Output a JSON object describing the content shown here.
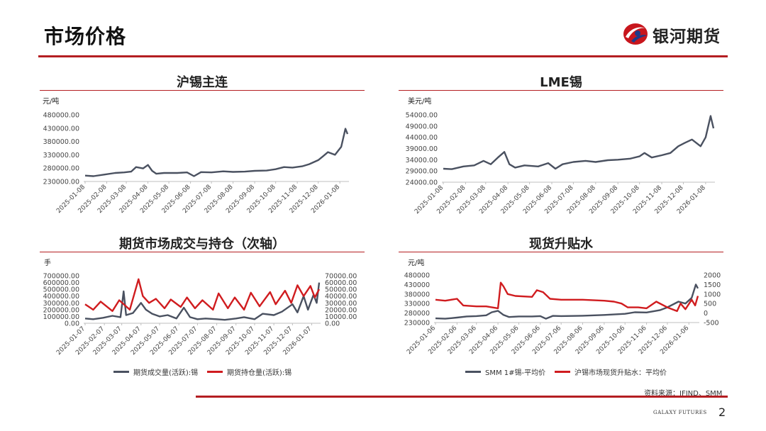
{
  "header": {
    "title": "市场价格",
    "logo_text": "银河期货"
  },
  "footer": {
    "source": "资料来源：IFIND、SMM",
    "brand": "GALAXY FUTURES",
    "page_number": "2"
  },
  "colors": {
    "accent": "#b41e22",
    "series_gray": "#4a5160",
    "series_red": "#d01c1f"
  },
  "chart_data": [
    {
      "id": "shfe",
      "type": "line",
      "title": "沪锡主连",
      "unit": "元/吨",
      "ylim": [
        230000,
        480000
      ],
      "yticks": [
        "480000.00",
        "430000.00",
        "380000.00",
        "330000.00",
        "280000.00",
        "230000.00"
      ],
      "xticks": [
        "2025-01-08",
        "2025-02-08",
        "2025-03-08",
        "2025-04-08",
        "2025-05-08",
        "2025-06-08",
        "2025-07-08",
        "2025-08-08",
        "2025-09-08",
        "2025-10-08",
        "2025-11-08",
        "2025-12-08",
        "2026-01-08"
      ],
      "series": [
        {
          "color": "#4a5160",
          "points": [
            [
              "2025-01-08",
              252000
            ],
            [
              "2025-01-20",
              250000
            ],
            [
              "2025-02-05",
              256000
            ],
            [
              "2025-02-20",
              262000
            ],
            [
              "2025-03-05",
              264000
            ],
            [
              "2025-03-15",
              267000
            ],
            [
              "2025-03-22",
              284000
            ],
            [
              "2025-04-01",
              279000
            ],
            [
              "2025-04-08",
              292000
            ],
            [
              "2025-04-14",
              270000
            ],
            [
              "2025-04-20",
              259000
            ],
            [
              "2025-05-01",
              262000
            ],
            [
              "2025-05-20",
              262000
            ],
            [
              "2025-06-03",
              264000
            ],
            [
              "2025-06-13",
              250000
            ],
            [
              "2025-06-23",
              265000
            ],
            [
              "2025-07-08",
              264000
            ],
            [
              "2025-07-25",
              268000
            ],
            [
              "2025-08-08",
              266000
            ],
            [
              "2025-08-25",
              267000
            ],
            [
              "2025-09-08",
              270000
            ],
            [
              "2025-09-25",
              271000
            ],
            [
              "2025-10-08",
              276000
            ],
            [
              "2025-10-20",
              284000
            ],
            [
              "2025-11-01",
              282000
            ],
            [
              "2025-11-15",
              287000
            ],
            [
              "2025-11-25",
              295000
            ],
            [
              "2025-12-08",
              310000
            ],
            [
              "2025-12-15",
              325000
            ],
            [
              "2025-12-22",
              340000
            ],
            [
              "2026-01-01",
              330000
            ],
            [
              "2026-01-10",
              360000
            ],
            [
              "2026-01-16",
              428000
            ],
            [
              "2026-01-19",
              408000
            ]
          ]
        }
      ]
    },
    {
      "id": "lme",
      "type": "line",
      "title": "LME锡",
      "unit": "美元/吨",
      "ylim": [
        24000,
        54000
      ],
      "yticks": [
        "54000.00",
        "49000.00",
        "44000.00",
        "39000.00",
        "34000.00",
        "29000.00",
        "24000.00"
      ],
      "xticks": [
        "2025-01-08",
        "2025-02-08",
        "2025-03-08",
        "2025-04-08",
        "2025-05-08",
        "2025-06-08",
        "2025-07-08",
        "2025-08-08",
        "2025-09-08",
        "2025-10-08",
        "2025-11-08",
        "2025-12-08",
        "2026-01-08"
      ],
      "series": [
        {
          "color": "#4a5160",
          "points": [
            [
              "2025-01-08",
              30000
            ],
            [
              "2025-01-20",
              29800
            ],
            [
              "2025-02-05",
              31000
            ],
            [
              "2025-02-20",
              31500
            ],
            [
              "2025-03-05",
              33500
            ],
            [
              "2025-03-15",
              32000
            ],
            [
              "2025-03-25",
              35000
            ],
            [
              "2025-04-03",
              37500
            ],
            [
              "2025-04-10",
              32000
            ],
            [
              "2025-04-18",
              30500
            ],
            [
              "2025-05-01",
              31500
            ],
            [
              "2025-05-20",
              31000
            ],
            [
              "2025-06-03",
              32500
            ],
            [
              "2025-06-13",
              30000
            ],
            [
              "2025-06-23",
              32000
            ],
            [
              "2025-07-08",
              33000
            ],
            [
              "2025-07-25",
              33500
            ],
            [
              "2025-08-08",
              33000
            ],
            [
              "2025-08-25",
              33800
            ],
            [
              "2025-09-08",
              34000
            ],
            [
              "2025-09-25",
              34500
            ],
            [
              "2025-10-08",
              35500
            ],
            [
              "2025-10-15",
              37000
            ],
            [
              "2025-10-25",
              35000
            ],
            [
              "2025-11-08",
              36000
            ],
            [
              "2025-11-20",
              37000
            ],
            [
              "2025-12-01",
              40000
            ],
            [
              "2025-12-10",
              41500
            ],
            [
              "2025-12-20",
              43000
            ],
            [
              "2026-01-01",
              40000
            ],
            [
              "2026-01-08",
              44000
            ],
            [
              "2026-01-15",
              53500
            ],
            [
              "2026-01-19",
              48000
            ]
          ]
        }
      ]
    },
    {
      "id": "volume_oi",
      "type": "line",
      "title": "期货市场成交与持仓（次轴）",
      "unit": "手",
      "ylim": [
        0,
        700000
      ],
      "ylim_right": [
        0,
        70000
      ],
      "yticks": [
        "700000.00",
        "600000.00",
        "500000.00",
        "400000.00",
        "300000.00",
        "200000.00",
        "100000.00",
        "0.00"
      ],
      "yticks_right": [
        "70000.00",
        "60000.00",
        "50000.00",
        "40000.00",
        "30000.00",
        "20000.00",
        "10000.00",
        "0.00"
      ],
      "xticks": [
        "2025-01-07",
        "2025-02-07",
        "2025-03-07",
        "2025-04-07",
        "2025-05-07",
        "2025-06-07",
        "2025-07-07",
        "2025-08-07",
        "2025-09-07",
        "2025-10-07",
        "2025-11-07",
        "2025-12-07",
        "2026-01-07"
      ],
      "series": [
        {
          "name": "期货成交量(活跃):锡",
          "color": "#4a5160",
          "axis": "left",
          "points": [
            [
              "2025-01-07",
              70000
            ],
            [
              "2025-01-20",
              60000
            ],
            [
              "2025-02-05",
              80000
            ],
            [
              "2025-02-20",
              110000
            ],
            [
              "2025-03-05",
              90000
            ],
            [
              "2025-03-10",
              470000
            ],
            [
              "2025-03-14",
              120000
            ],
            [
              "2025-03-25",
              150000
            ],
            [
              "2025-04-07",
              300000
            ],
            [
              "2025-04-15",
              200000
            ],
            [
              "2025-04-25",
              140000
            ],
            [
              "2025-05-07",
              100000
            ],
            [
              "2025-05-20",
              120000
            ],
            [
              "2025-06-03",
              70000
            ],
            [
              "2025-06-15",
              230000
            ],
            [
              "2025-06-25",
              90000
            ],
            [
              "2025-07-07",
              60000
            ],
            [
              "2025-07-20",
              70000
            ],
            [
              "2025-08-07",
              60000
            ],
            [
              "2025-08-20",
              50000
            ],
            [
              "2025-09-07",
              70000
            ],
            [
              "2025-09-20",
              90000
            ],
            [
              "2025-10-07",
              60000
            ],
            [
              "2025-10-20",
              140000
            ],
            [
              "2025-11-07",
              120000
            ],
            [
              "2025-11-20",
              170000
            ],
            [
              "2025-12-07",
              280000
            ],
            [
              "2025-12-15",
              160000
            ],
            [
              "2025-12-25",
              400000
            ],
            [
              "2026-01-01",
              200000
            ],
            [
              "2026-01-10",
              420000
            ],
            [
              "2026-01-15",
              300000
            ],
            [
              "2026-01-19",
              600000
            ]
          ]
        },
        {
          "name": "期货持仓量(活跃):锡",
          "color": "#d01c1f",
          "axis": "right",
          "points": [
            [
              "2025-01-07",
              28000
            ],
            [
              "2025-01-20",
              20000
            ],
            [
              "2025-02-01",
              32000
            ],
            [
              "2025-02-20",
              18000
            ],
            [
              "2025-03-03",
              34000
            ],
            [
              "2025-03-20",
              20000
            ],
            [
              "2025-04-03",
              65000
            ],
            [
              "2025-04-10",
              40000
            ],
            [
              "2025-04-20",
              30000
            ],
            [
              "2025-05-01",
              36000
            ],
            [
              "2025-05-15",
              22000
            ],
            [
              "2025-05-25",
              35000
            ],
            [
              "2025-06-10",
              24000
            ],
            [
              "2025-06-20",
              38000
            ],
            [
              "2025-07-03",
              22000
            ],
            [
              "2025-07-15",
              34000
            ],
            [
              "2025-08-01",
              20000
            ],
            [
              "2025-08-10",
              44000
            ],
            [
              "2025-08-25",
              22000
            ],
            [
              "2025-09-05",
              38000
            ],
            [
              "2025-09-20",
              20000
            ],
            [
              "2025-10-01",
              45000
            ],
            [
              "2025-10-15",
              25000
            ],
            [
              "2025-11-01",
              46000
            ],
            [
              "2025-11-10",
              28000
            ],
            [
              "2025-11-25",
              48000
            ],
            [
              "2025-12-05",
              30000
            ],
            [
              "2025-12-15",
              56000
            ],
            [
              "2025-12-25",
              40000
            ],
            [
              "2026-01-05",
              55000
            ],
            [
              "2026-01-12",
              38000
            ],
            [
              "2026-01-19",
              50000
            ]
          ]
        }
      ]
    },
    {
      "id": "spot_premium",
      "type": "line",
      "title": "现货升贴水",
      "unit": "元/吨",
      "ylim": [
        230000,
        480000
      ],
      "ylim_right": [
        -500,
        2000
      ],
      "yticks": [
        "480000",
        "430000",
        "380000",
        "330000",
        "280000",
        "230000"
      ],
      "yticks_right": [
        "2000",
        "1500",
        "1000",
        "500",
        "0",
        "-500"
      ],
      "xticks": [
        "2025-01-06",
        "2025-02-06",
        "2025-03-06",
        "2025-04-06",
        "2025-05-06",
        "2025-06-06",
        "2025-07-06",
        "2025-08-06",
        "2025-09-06",
        "2025-10-06",
        "2025-11-06",
        "2025-12-06",
        "2026-01-06"
      ],
      "series": [
        {
          "name": "SMM 1#锡-平均价",
          "color": "#4a5160",
          "axis": "left",
          "points": [
            [
              "2025-01-06",
              252000
            ],
            [
              "2025-01-20",
              250000
            ],
            [
              "2025-02-06",
              256000
            ],
            [
              "2025-02-20",
              262000
            ],
            [
              "2025-03-06",
              264000
            ],
            [
              "2025-03-20",
              268000
            ],
            [
              "2025-03-28",
              284000
            ],
            [
              "2025-04-06",
              292000
            ],
            [
              "2025-04-14",
              270000
            ],
            [
              "2025-04-22",
              259000
            ],
            [
              "2025-05-06",
              262000
            ],
            [
              "2025-05-25",
              262000
            ],
            [
              "2025-06-06",
              264000
            ],
            [
              "2025-06-14",
              250000
            ],
            [
              "2025-06-24",
              265000
            ],
            [
              "2025-07-06",
              264000
            ],
            [
              "2025-08-06",
              266000
            ],
            [
              "2025-09-06",
              270000
            ],
            [
              "2025-10-06",
              276000
            ],
            [
              "2025-10-20",
              284000
            ],
            [
              "2025-11-06",
              283000
            ],
            [
              "2025-11-25",
              295000
            ],
            [
              "2025-12-06",
              310000
            ],
            [
              "2025-12-22",
              340000
            ],
            [
              "2026-01-01",
              330000
            ],
            [
              "2026-01-10",
              360000
            ],
            [
              "2026-01-16",
              430000
            ],
            [
              "2026-01-19",
              410000
            ]
          ]
        },
        {
          "name": "沪锡市场现货升贴水：平均价",
          "color": "#d01c1f",
          "axis": "right",
          "points": [
            [
              "2025-01-06",
              700
            ],
            [
              "2025-01-20",
              650
            ],
            [
              "2025-02-06",
              750
            ],
            [
              "2025-02-15",
              400
            ],
            [
              "2025-03-06",
              350
            ],
            [
              "2025-03-20",
              350
            ],
            [
              "2025-04-06",
              250
            ],
            [
              "2025-04-10",
              1600
            ],
            [
              "2025-04-14",
              1400
            ],
            [
              "2025-04-20",
              1000
            ],
            [
              "2025-05-01",
              900
            ],
            [
              "2025-05-25",
              850
            ],
            [
              "2025-06-01",
              1200
            ],
            [
              "2025-06-10",
              1100
            ],
            [
              "2025-06-20",
              750
            ],
            [
              "2025-07-06",
              700
            ],
            [
              "2025-08-06",
              700
            ],
            [
              "2025-09-06",
              650
            ],
            [
              "2025-09-20",
              600
            ],
            [
              "2025-10-01",
              500
            ],
            [
              "2025-10-10",
              300
            ],
            [
              "2025-10-25",
              300
            ],
            [
              "2025-11-06",
              250
            ],
            [
              "2025-11-20",
              600
            ],
            [
              "2025-12-06",
              300
            ],
            [
              "2025-12-20",
              100
            ],
            [
              "2025-12-25",
              500
            ],
            [
              "2026-01-01",
              200
            ],
            [
              "2026-01-10",
              700
            ],
            [
              "2026-01-15",
              400
            ],
            [
              "2026-01-19",
              900
            ]
          ]
        }
      ]
    }
  ]
}
